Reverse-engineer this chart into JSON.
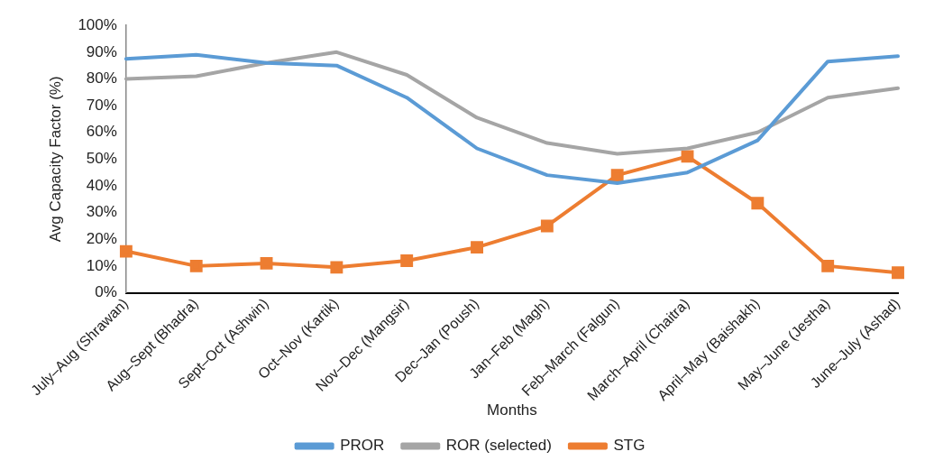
{
  "chart_data": {
    "type": "line",
    "xlabel": "Months",
    "ylabel": "Avg Capacity Factor (%)",
    "categories": [
      "July–Aug (Shrawan)",
      "Aug–Sept (Bhadra)",
      "Sept–Oct (Ashwin)",
      "Oct–Nov (Kartik)",
      "Nov–Dec (Mangsir)",
      "Dec–Jan (Poush)",
      "Jan–Feb (Magh)",
      "Feb–March (Falgun)",
      "March–April (Chaitra)",
      "April–May (Baishakh)",
      "May–June (Jestha)",
      "June–July (Ashad)"
    ],
    "series": [
      {
        "name": "PROR",
        "color": "#5b9bd5",
        "marker": "none",
        "values": [
          87.5,
          89,
          86,
          85,
          73,
          54,
          44,
          41,
          45,
          57,
          86.5,
          88.5
        ]
      },
      {
        "name": "ROR (selected)",
        "color": "#a5a5a5",
        "marker": "none",
        "values": [
          80,
          81,
          86,
          90,
          81.5,
          65.5,
          56,
          52,
          54,
          60,
          73,
          76.5
        ]
      },
      {
        "name": "STG",
        "color": "#ed7d31",
        "marker": "square",
        "values": [
          15.5,
          10,
          11,
          9.5,
          12,
          17,
          25,
          44,
          51,
          33.5,
          10,
          7.5
        ]
      }
    ],
    "ylim": [
      0,
      100
    ],
    "yticks": [
      {
        "value": 0,
        "label": "0%"
      },
      {
        "value": 10,
        "label": "10%"
      },
      {
        "value": 20,
        "label": "20%"
      },
      {
        "value": 30,
        "label": "30%"
      },
      {
        "value": 40,
        "label": "40%"
      },
      {
        "value": 50,
        "label": "50%"
      },
      {
        "value": 60,
        "label": "60%"
      },
      {
        "value": 70,
        "label": "70%"
      },
      {
        "value": 80,
        "label": "80%"
      },
      {
        "value": 90,
        "label": "90%"
      },
      {
        "value": 100,
        "label": "100%"
      }
    ],
    "grid": false,
    "legend": "bottom"
  }
}
